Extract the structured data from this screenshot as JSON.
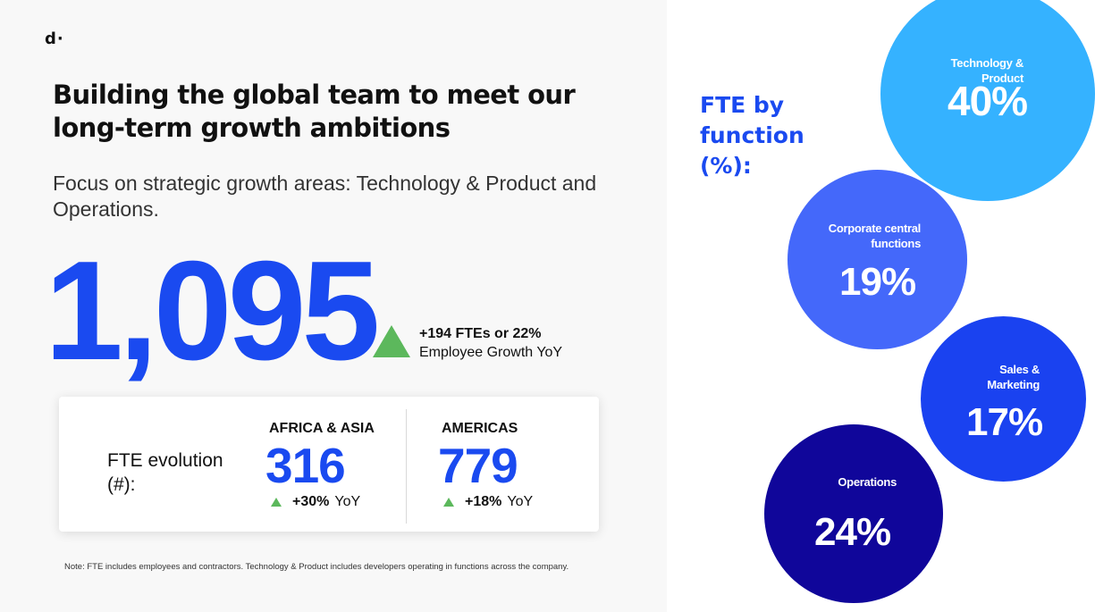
{
  "logo": "d·",
  "headline": "Building the global team to meet our long-term growth ambitions",
  "subhead": "Focus on strategic growth areas: Technology & Product and Operations.",
  "total_fte": "1,095",
  "growth": {
    "line1": "+194 FTEs or 22%",
    "line2": "Employee Growth YoY",
    "indicator_color": "#5cb85c"
  },
  "fte_evolution": {
    "label": "FTE evolution (#):",
    "regions": [
      {
        "name": "AFRICA & ASIA",
        "value": "316",
        "yoy_pct": "+30%",
        "yoy_label": "YoY"
      },
      {
        "name": "AMERICAS",
        "value": "779",
        "yoy_pct": "+18%",
        "yoy_label": "YoY"
      }
    ]
  },
  "footnote": "Note: FTE includes employees and contractors. Technology & Product includes developers operating in functions across the company.",
  "by_function": {
    "title": "FTE by function (%):",
    "items": [
      {
        "label": "Technology & Product",
        "value": "40%",
        "color": "#35b2ff"
      },
      {
        "label": "Corporate central functions",
        "value": "19%",
        "color": "#4468fa"
      },
      {
        "label": "Sales & Marketing",
        "value": "17%",
        "color": "#1a42f0"
      },
      {
        "label": "Operations",
        "value": "24%",
        "color": "#10069a"
      }
    ]
  },
  "colors": {
    "accent": "#1a4af0",
    "panel_background": "#f8f8f8"
  }
}
